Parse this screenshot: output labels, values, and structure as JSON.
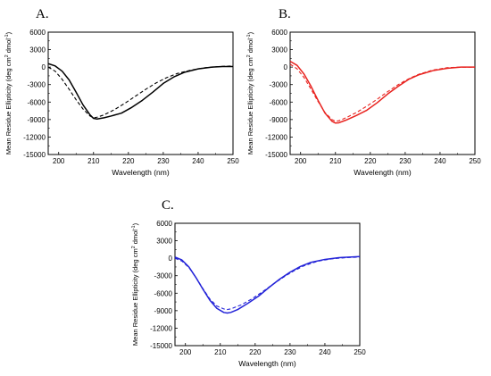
{
  "chart_data": [
    {
      "type": "line",
      "panel_label": "A.",
      "xlabel": "Wavelength (nm)",
      "ylabel": {
        "prefix": "Mean Residue Ellipticity (deg cm",
        "sup1": "2",
        "mid": " dmol",
        "sup2": "-1",
        "suffix": ")"
      },
      "xlim": [
        197,
        250
      ],
      "ylim": [
        -15000,
        6000
      ],
      "xticks": [
        200,
        210,
        220,
        230,
        240,
        250
      ],
      "yticks": [
        6000,
        3000,
        0,
        -3000,
        -6000,
        -9000,
        -12000,
        -15000
      ],
      "color": "#000000",
      "series": [
        {
          "style": "solid",
          "x": [
            197,
            199,
            201,
            203,
            205,
            207,
            209,
            210,
            211,
            213,
            215,
            218,
            221,
            224,
            227,
            230,
            233,
            236,
            240,
            244,
            247,
            250
          ],
          "y": [
            600,
            200,
            -700,
            -2200,
            -4300,
            -6500,
            -8200,
            -8800,
            -8900,
            -8700,
            -8400,
            -7900,
            -6900,
            -5700,
            -4300,
            -2800,
            -1700,
            -900,
            -300,
            0,
            100,
            100
          ]
        },
        {
          "style": "dashed",
          "x": [
            197,
            199,
            201,
            203,
            205,
            207,
            209,
            210,
            211,
            213,
            216,
            219,
            222,
            225,
            228,
            231,
            234,
            238,
            242,
            246,
            250
          ],
          "y": [
            0,
            -700,
            -2100,
            -3800,
            -5600,
            -7200,
            -8400,
            -8700,
            -8600,
            -8200,
            -7300,
            -6200,
            -5000,
            -3800,
            -2700,
            -1800,
            -1100,
            -500,
            -100,
            100,
            200
          ]
        }
      ]
    },
    {
      "type": "line",
      "panel_label": "B.",
      "xlabel": "Wavelength (nm)",
      "ylabel": {
        "prefix": "Mean Residue Ellipticity (deg cm",
        "sup1": "2",
        "mid": " dmol",
        "sup2": "-1",
        "suffix": ")"
      },
      "xlim": [
        197,
        250
      ],
      "ylim": [
        -15000,
        6000
      ],
      "xticks": [
        200,
        210,
        220,
        230,
        240,
        250
      ],
      "yticks": [
        6000,
        3000,
        0,
        -3000,
        -6000,
        -9000,
        -12000,
        -15000
      ],
      "color": "#e8231f",
      "series": [
        {
          "style": "solid",
          "x": [
            197,
            199,
            201,
            203,
            205,
            207,
            209,
            210,
            211,
            213,
            216,
            219,
            222,
            225,
            228,
            231,
            234,
            238,
            242,
            246,
            250
          ],
          "y": [
            1000,
            300,
            -1200,
            -3300,
            -5700,
            -7900,
            -9300,
            -9600,
            -9550,
            -9100,
            -8300,
            -7400,
            -6100,
            -4600,
            -3300,
            -2100,
            -1300,
            -600,
            -200,
            0,
            0
          ]
        },
        {
          "style": "dashed",
          "x": [
            197,
            199,
            201,
            203,
            205,
            207,
            209,
            210,
            211,
            213,
            216,
            219,
            222,
            225,
            228,
            231,
            234,
            238,
            242,
            246,
            250
          ],
          "y": [
            500,
            -300,
            -1800,
            -3800,
            -5900,
            -7800,
            -9000,
            -9300,
            -9200,
            -8700,
            -7800,
            -6700,
            -5500,
            -4200,
            -3000,
            -2000,
            -1200,
            -500,
            -100,
            0,
            0
          ]
        }
      ]
    },
    {
      "type": "line",
      "panel_label": "C.",
      "xlabel": "Wavelength (nm)",
      "ylabel": {
        "prefix": "Mean Residue Ellipticity (deg cm",
        "sup1": "2",
        "mid": " dmol",
        "sup2": "-1",
        "suffix": ")"
      },
      "xlim": [
        197,
        250
      ],
      "ylim": [
        -15000,
        6000
      ],
      "xticks": [
        200,
        210,
        220,
        230,
        240,
        250
      ],
      "yticks": [
        6000,
        3000,
        0,
        -3000,
        -6000,
        -9000,
        -12000,
        -15000
      ],
      "color": "#2323d8",
      "series": [
        {
          "style": "solid",
          "x": [
            197,
            199,
            201,
            203,
            205,
            207,
            209,
            211,
            212,
            213,
            215,
            218,
            221,
            224,
            227,
            230,
            233,
            236,
            240,
            244,
            247,
            250
          ],
          "y": [
            200,
            -300,
            -1500,
            -3300,
            -5300,
            -7200,
            -8600,
            -9300,
            -9400,
            -9300,
            -8800,
            -7700,
            -6500,
            -5000,
            -3600,
            -2400,
            -1400,
            -700,
            -200,
            100,
            200,
            300
          ]
        },
        {
          "style": "dashed",
          "x": [
            197,
            199,
            201,
            203,
            205,
            207,
            209,
            211,
            212,
            213,
            216,
            219,
            222,
            225,
            228,
            231,
            234,
            238,
            242,
            246,
            250
          ],
          "y": [
            0,
            -500,
            -1600,
            -3300,
            -5200,
            -7000,
            -8200,
            -8700,
            -8800,
            -8700,
            -8000,
            -7000,
            -5800,
            -4500,
            -3300,
            -2200,
            -1300,
            -500,
            -100,
            100,
            200
          ]
        }
      ]
    }
  ]
}
